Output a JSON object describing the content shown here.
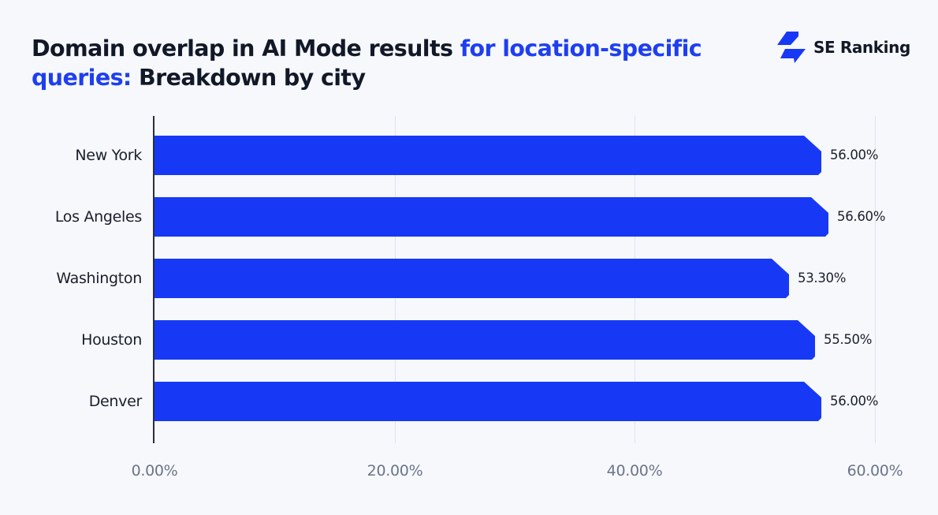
{
  "header": {
    "title_part1": "Domain overlap in AI Mode results ",
    "title_accent": "for location-specific queries:",
    "title_part2": " Breakdown by city",
    "brand": "SE Ranking",
    "brand_icon": "se-ranking-logo-icon"
  },
  "colors": {
    "background": "#f6f8fc",
    "bar": "#1739f6",
    "title_accent": "#1e3ff0",
    "text": "#111827",
    "tick": "#6b7488",
    "grid": "#dde4f0"
  },
  "chart_data": {
    "type": "bar",
    "orientation": "horizontal",
    "title": "Domain overlap in AI Mode results for location-specific queries: Breakdown by city",
    "categories": [
      "New York",
      "Los Angeles",
      "Washington",
      "Houston",
      "Denver"
    ],
    "values": [
      56.0,
      56.6,
      53.3,
      55.5,
      56.0
    ],
    "value_labels": [
      "56.00%",
      "56.60%",
      "53.30%",
      "55.50%",
      "56.00%"
    ],
    "xlabel": "",
    "ylabel": "",
    "xlim": [
      0,
      60
    ],
    "xticks": [
      0,
      20,
      40,
      60
    ],
    "xtick_labels": [
      "0.00%",
      "20.00%",
      "40.00%",
      "60.00%"
    ],
    "grid": "vertical",
    "legend": "none"
  }
}
